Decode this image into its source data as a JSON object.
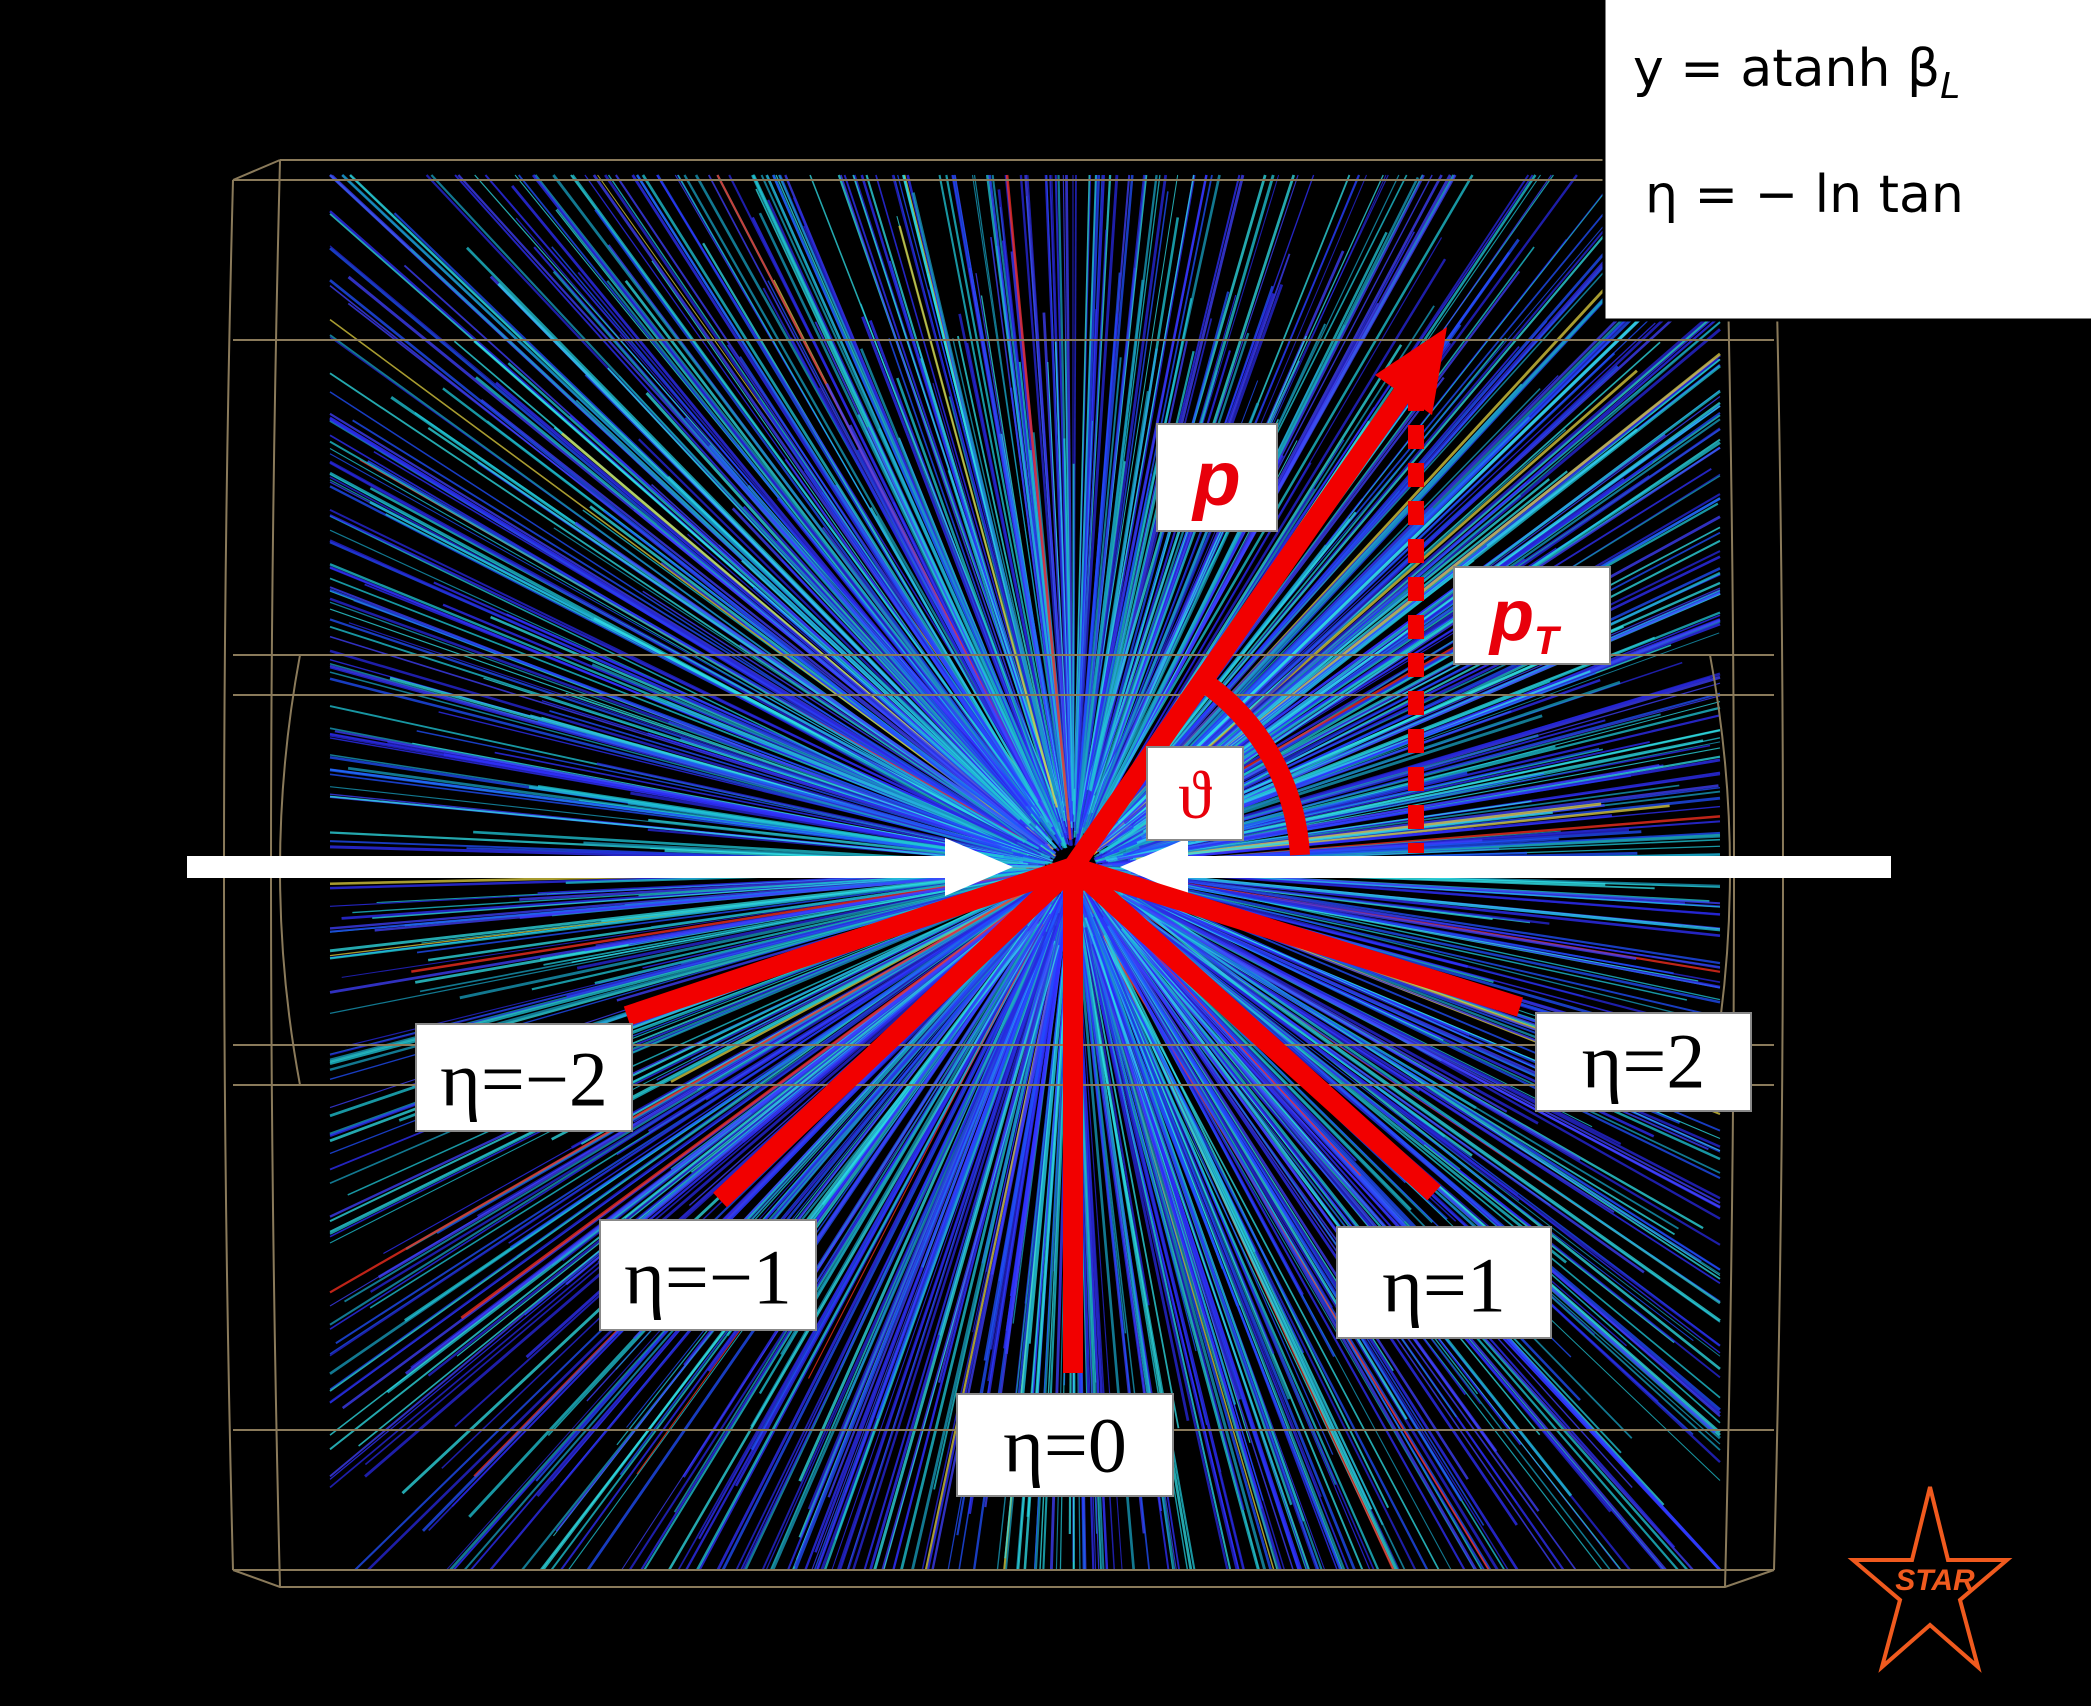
{
  "formulas": [
    {
      "main": "y = atanh β",
      "sub": "L"
    },
    {
      "main": "η = − ln tan"
    }
  ],
  "labels": {
    "momentum": "p",
    "transverse": {
      "main": "p",
      "sub": "T"
    },
    "angle": "ϑ",
    "eta": [
      "η=−2",
      "η=−1",
      "η=0",
      "η=1",
      "η=2"
    ]
  },
  "logo": "STAR"
}
